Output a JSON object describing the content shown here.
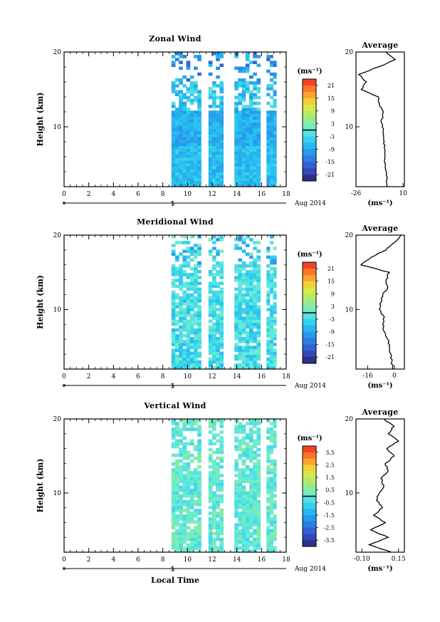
{
  "chart_data": [
    {
      "type": "heatmap",
      "title": "Zonal Wind",
      "ylabel": "Height (km)",
      "xlabel": "",
      "xlim": [
        0,
        18
      ],
      "ylim": [
        2,
        20
      ],
      "x_ticks": [
        "0",
        "2",
        "4",
        "6",
        "8",
        "10",
        "12",
        "14",
        "16",
        "18"
      ],
      "y_ticks": [
        "10",
        "20"
      ],
      "date_label": "5",
      "date_suffix": "Aug 2014",
      "unit_label": "(ms⁻¹)",
      "colorbar": {
        "labels": [
          "21",
          "15",
          "9",
          "3",
          "-3",
          "-9",
          "-15",
          "-21"
        ],
        "vmin": -24,
        "vmax": 24
      },
      "data_blocks": [
        [
          8.7,
          11.1
        ],
        [
          11.7,
          12.9
        ],
        [
          13.8,
          15.9
        ],
        [
          16.4,
          17.2
        ]
      ],
      "description": "Mostly negative (easterly) winds, about -10 to -5 below 12 km",
      "profile": {
        "title": "Average",
        "xlim": [
          -26,
          11
        ],
        "x_ticks": [
          "-26",
          "10"
        ],
        "x_tick_values": [
          -26,
          10
        ],
        "xlabel": "(ms⁻¹)",
        "height": [
          2,
          3,
          4,
          5,
          6,
          7,
          8,
          9,
          10,
          11,
          12,
          13,
          14,
          15,
          16,
          17,
          18,
          19,
          20
        ],
        "value": [
          -2,
          -2.5,
          -3,
          -3.5,
          -4,
          -4,
          -4.5,
          -5,
          -6,
          -6.5,
          -5,
          -8,
          -9,
          -22,
          -18,
          -24,
          -9,
          4,
          -3
        ]
      }
    },
    {
      "type": "heatmap",
      "title": "Meridional Wind",
      "ylabel": "Height (km)",
      "xlabel": "",
      "xlim": [
        0,
        18
      ],
      "ylim": [
        2,
        20
      ],
      "x_ticks": [
        "0",
        "2",
        "4",
        "6",
        "8",
        "10",
        "12",
        "14",
        "16",
        "18"
      ],
      "y_ticks": [
        "10",
        "20"
      ],
      "date_label": "5",
      "date_suffix": "Aug 2014",
      "unit_label": "(ms⁻¹)",
      "colorbar": {
        "labels": [
          "21",
          "15",
          "9",
          "3",
          "-3",
          "-9",
          "-15",
          "-21"
        ],
        "vmin": -24,
        "vmax": 24
      },
      "data_blocks": [
        [
          8.7,
          11.1
        ],
        [
          11.7,
          12.9
        ],
        [
          13.8,
          15.9
        ],
        [
          16.4,
          17.2
        ]
      ],
      "description": "Mostly negative to near-zero values",
      "profile": {
        "title": "Average",
        "xlim": [
          -23,
          6
        ],
        "x_ticks": [
          "-16",
          "0"
        ],
        "x_tick_values": [
          -16,
          0
        ],
        "xlabel": "(ms⁻¹)",
        "height": [
          2,
          3,
          4,
          5,
          6,
          7,
          8,
          9,
          10,
          11,
          12,
          13,
          14,
          15,
          16,
          17,
          18,
          19,
          20
        ],
        "value": [
          -1,
          -1.5,
          -2,
          -3,
          -4,
          -6,
          -7,
          -6,
          -9,
          -8,
          -7,
          -4,
          -5,
          -3,
          -20,
          -14,
          -5,
          0,
          4
        ]
      }
    },
    {
      "type": "heatmap",
      "title": "Vertical Wind",
      "ylabel": "Height (km)",
      "xlabel": "Local Time",
      "xlim": [
        0,
        18
      ],
      "ylim": [
        2,
        20
      ],
      "x_ticks": [
        "0",
        "2",
        "4",
        "6",
        "8",
        "10",
        "12",
        "14",
        "16",
        "18"
      ],
      "y_ticks": [
        "10",
        "20"
      ],
      "date_label": "5",
      "date_suffix": "Aug 2014",
      "unit_label": "(ms⁻¹)",
      "colorbar": {
        "labels": [
          "3.5",
          "2.5",
          "1.5",
          "0.5",
          "-0.5",
          "-1.5",
          "-2.5",
          "-3.5"
        ],
        "vmin": -4,
        "vmax": 4
      },
      "data_blocks": [
        [
          8.7,
          11.1
        ],
        [
          11.7,
          12.9
        ],
        [
          13.8,
          15.9
        ],
        [
          16.4,
          17.2
        ]
      ],
      "description": "Near-zero vertical velocities",
      "profile": {
        "title": "Average",
        "xlim": [
          -0.14,
          0.19
        ],
        "x_ticks": [
          "-0.10",
          "0.15"
        ],
        "x_tick_values": [
          -0.1,
          0.15
        ],
        "xlabel": "(ms⁻¹)",
        "height": [
          2,
          3,
          4,
          5,
          6,
          7,
          8,
          9,
          10,
          11,
          12,
          13,
          14,
          15,
          16,
          17,
          18,
          19,
          20
        ],
        "value": [
          0.1,
          -0.05,
          0.08,
          -0.04,
          0.06,
          -0.02,
          0.04,
          0.0,
          0.02,
          0.05,
          0.03,
          0.08,
          0.06,
          0.12,
          0.07,
          0.15,
          0.08,
          0.12,
          0.05
        ]
      }
    }
  ]
}
